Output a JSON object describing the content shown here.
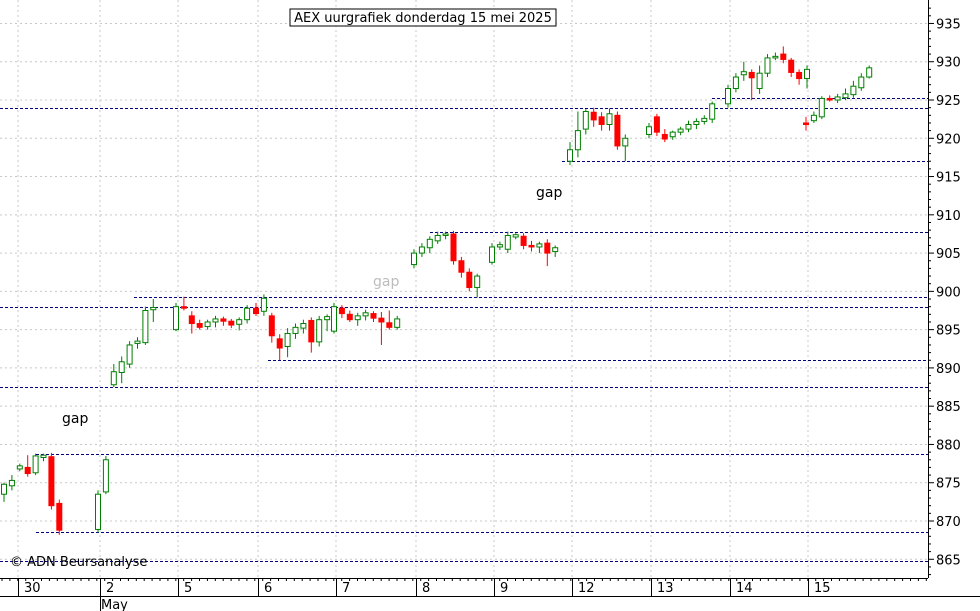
{
  "chart_data": {
    "type": "candlestick",
    "title": "AEX uurgrafiek donderdag 15 mei 2025",
    "copyright": "© ADN Beursanalyse",
    "ylim": [
      862,
      938
    ],
    "y_ticks": [
      865,
      870,
      875,
      880,
      885,
      890,
      895,
      900,
      905,
      910,
      915,
      920,
      925,
      930,
      935
    ],
    "x_day_labels": [
      "30",
      "2",
      "5",
      "6",
      "7",
      "8",
      "9",
      "12",
      "13",
      "14",
      "15"
    ],
    "month_label": "May",
    "grid": true,
    "colors": {
      "up": "#008000",
      "down": "#ff0000",
      "level_line": "#000080"
    },
    "annotations": [
      {
        "text": "gap",
        "style": "black",
        "near_value": 883
      },
      {
        "text": "gap",
        "style": "grey",
        "near_value": 901
      },
      {
        "text": "gap",
        "style": "black",
        "near_value": 913
      }
    ],
    "horizontal_levels": [
      {
        "value": 924,
        "segment": "full"
      },
      {
        "value": 898,
        "segment": "full"
      },
      {
        "value": 887.5,
        "segment": "full"
      },
      {
        "value": 878.8,
        "segment": "from-30-apr"
      },
      {
        "value": 868.5,
        "segment": "from-30-apr"
      },
      {
        "value": 864.8,
        "segment": "full"
      },
      {
        "value": 925.3,
        "segment": "from-14-may"
      },
      {
        "value": 917,
        "segment": "from-12-may"
      },
      {
        "value": 907.8,
        "segment": "from-8-may"
      },
      {
        "value": 899.3,
        "segment": "from-2-may"
      },
      {
        "value": 891,
        "segment": "from-6-may"
      }
    ],
    "days": [
      {
        "label": "30",
        "candles": [
          {
            "o": 873.5,
            "h": 875.0,
            "l": 872.5,
            "c": 874.8
          },
          {
            "o": 874.6,
            "h": 876.0,
            "l": 874.0,
            "c": 875.3
          },
          {
            "o": 876.8,
            "h": 877.5,
            "l": 876.5,
            "c": 877.2
          },
          {
            "o": 877.0,
            "h": 878.6,
            "l": 875.8,
            "c": 876.2
          },
          {
            "o": 876.3,
            "h": 878.8,
            "l": 876.0,
            "c": 878.5
          },
          {
            "o": 878.3,
            "h": 878.8,
            "l": 877.8,
            "c": 878.6
          },
          {
            "o": 878.4,
            "h": 878.9,
            "l": 871.5,
            "c": 872.0
          },
          {
            "o": 872.3,
            "h": 872.8,
            "l": 868.2,
            "c": 868.8
          }
        ]
      },
      {
        "label": "2",
        "candles": [
          {
            "o": 868.9,
            "h": 874.0,
            "l": 868.5,
            "c": 873.5
          },
          {
            "o": 873.8,
            "h": 878.5,
            "l": 873.5,
            "c": 878.0
          },
          {
            "o": 887.8,
            "h": 890.5,
            "l": 887.5,
            "c": 889.5
          },
          {
            "o": 889.4,
            "h": 891.5,
            "l": 888.0,
            "c": 890.8
          },
          {
            "o": 890.5,
            "h": 893.5,
            "l": 890.0,
            "c": 893.0
          },
          {
            "o": 893.2,
            "h": 894.0,
            "l": 892.5,
            "c": 893.5
          },
          {
            "o": 893.3,
            "h": 898.0,
            "l": 893.0,
            "c": 897.5
          },
          {
            "o": 897.6,
            "h": 899.0,
            "l": 896.0,
            "c": 897.9
          }
        ]
      },
      {
        "label": "5",
        "candles": [
          {
            "o": 895.0,
            "h": 898.5,
            "l": 894.8,
            "c": 898.0
          },
          {
            "o": 898.0,
            "h": 899.3,
            "l": 897.5,
            "c": 897.8
          },
          {
            "o": 896.8,
            "h": 897.4,
            "l": 894.5,
            "c": 895.8
          },
          {
            "o": 895.8,
            "h": 896.3,
            "l": 895.0,
            "c": 895.3
          },
          {
            "o": 895.4,
            "h": 896.3,
            "l": 895.0,
            "c": 896.0
          },
          {
            "o": 896.0,
            "h": 896.8,
            "l": 895.3,
            "c": 896.4
          },
          {
            "o": 896.4,
            "h": 896.7,
            "l": 895.5,
            "c": 896.1
          },
          {
            "o": 896.1,
            "h": 896.4,
            "l": 895.2,
            "c": 895.6
          },
          {
            "o": 895.7,
            "h": 896.6,
            "l": 894.9,
            "c": 896.3
          },
          {
            "o": 896.3,
            "h": 898.2,
            "l": 895.8,
            "c": 897.8
          }
        ]
      },
      {
        "label": "6",
        "candles": [
          {
            "o": 897.8,
            "h": 898.5,
            "l": 896.8,
            "c": 897.1
          },
          {
            "o": 897.4,
            "h": 899.6,
            "l": 896.8,
            "c": 899.1
          },
          {
            "o": 896.8,
            "h": 897.2,
            "l": 893.3,
            "c": 894.2
          },
          {
            "o": 893.8,
            "h": 894.4,
            "l": 891.0,
            "c": 892.6
          },
          {
            "o": 892.8,
            "h": 895.2,
            "l": 891.4,
            "c": 894.5
          },
          {
            "o": 894.5,
            "h": 895.8,
            "l": 893.8,
            "c": 895.3
          },
          {
            "o": 895.2,
            "h": 896.3,
            "l": 894.5,
            "c": 895.8
          },
          {
            "o": 896.2,
            "h": 896.6,
            "l": 892.0,
            "c": 893.4
          },
          {
            "o": 893.4,
            "h": 896.8,
            "l": 892.8,
            "c": 896.3
          },
          {
            "o": 896.3,
            "h": 897.0,
            "l": 894.8,
            "c": 896.7
          }
        ]
      },
      {
        "label": "7",
        "candles": [
          {
            "o": 894.8,
            "h": 898.5,
            "l": 894.5,
            "c": 898.0
          },
          {
            "o": 897.8,
            "h": 898.2,
            "l": 896.5,
            "c": 897.1
          },
          {
            "o": 897.0,
            "h": 897.5,
            "l": 896.0,
            "c": 896.3
          },
          {
            "o": 896.3,
            "h": 897.2,
            "l": 895.5,
            "c": 896.8
          },
          {
            "o": 896.8,
            "h": 897.6,
            "l": 896.2,
            "c": 897.2
          },
          {
            "o": 897.1,
            "h": 897.4,
            "l": 896.0,
            "c": 896.5
          },
          {
            "o": 896.5,
            "h": 897.3,
            "l": 893.0,
            "c": 896.0
          },
          {
            "o": 895.9,
            "h": 897.5,
            "l": 895.0,
            "c": 895.3
          },
          {
            "o": 895.3,
            "h": 896.8,
            "l": 895.0,
            "c": 896.4
          }
        ]
      },
      {
        "label": "8",
        "candles": [
          {
            "o": 903.5,
            "h": 905.5,
            "l": 903.0,
            "c": 905.0
          },
          {
            "o": 905.0,
            "h": 906.3,
            "l": 904.5,
            "c": 905.8
          },
          {
            "o": 905.7,
            "h": 907.2,
            "l": 905.0,
            "c": 906.8
          },
          {
            "o": 906.6,
            "h": 907.8,
            "l": 906.2,
            "c": 907.3
          },
          {
            "o": 907.3,
            "h": 907.8,
            "l": 906.8,
            "c": 907.5
          },
          {
            "o": 907.5,
            "h": 907.9,
            "l": 903.5,
            "c": 904.0
          },
          {
            "o": 904.0,
            "h": 904.5,
            "l": 901.8,
            "c": 902.5
          },
          {
            "o": 902.5,
            "h": 903.0,
            "l": 900.0,
            "c": 900.5
          },
          {
            "o": 900.5,
            "h": 902.3,
            "l": 899.2,
            "c": 902.0
          }
        ]
      },
      {
        "label": "9",
        "candles": [
          {
            "o": 903.8,
            "h": 906.3,
            "l": 903.5,
            "c": 905.8
          },
          {
            "o": 905.8,
            "h": 906.5,
            "l": 905.4,
            "c": 906.1
          },
          {
            "o": 905.5,
            "h": 907.8,
            "l": 905.0,
            "c": 907.3
          },
          {
            "o": 907.1,
            "h": 907.6,
            "l": 906.8,
            "c": 907.4
          },
          {
            "o": 907.2,
            "h": 907.6,
            "l": 905.5,
            "c": 906.0
          },
          {
            "o": 906.0,
            "h": 906.6,
            "l": 905.2,
            "c": 905.8
          },
          {
            "o": 905.8,
            "h": 906.5,
            "l": 905.0,
            "c": 906.2
          },
          {
            "o": 906.3,
            "h": 906.8,
            "l": 903.3,
            "c": 905.0
          },
          {
            "o": 905.2,
            "h": 906.0,
            "l": 904.5,
            "c": 905.7
          }
        ]
      },
      {
        "label": "12",
        "candles": [
          {
            "o": 917.0,
            "h": 919.5,
            "l": 916.5,
            "c": 918.5
          },
          {
            "o": 918.5,
            "h": 923.5,
            "l": 917.5,
            "c": 921.0
          },
          {
            "o": 921.2,
            "h": 923.8,
            "l": 920.5,
            "c": 923.5
          },
          {
            "o": 923.4,
            "h": 924.0,
            "l": 921.5,
            "c": 922.4
          },
          {
            "o": 922.8,
            "h": 923.4,
            "l": 921.0,
            "c": 921.8
          },
          {
            "o": 921.8,
            "h": 923.9,
            "l": 921.0,
            "c": 923.2
          },
          {
            "o": 923.0,
            "h": 923.5,
            "l": 918.5,
            "c": 919.0
          },
          {
            "o": 919.0,
            "h": 920.5,
            "l": 917.0,
            "c": 920.0
          }
        ]
      },
      {
        "label": "13",
        "candles": [
          {
            "o": 920.5,
            "h": 922.0,
            "l": 920.0,
            "c": 921.5
          },
          {
            "o": 922.8,
            "h": 923.2,
            "l": 920.3,
            "c": 920.8
          },
          {
            "o": 920.5,
            "h": 921.2,
            "l": 919.5,
            "c": 919.9
          },
          {
            "o": 920.2,
            "h": 921.0,
            "l": 919.8,
            "c": 920.8
          },
          {
            "o": 920.8,
            "h": 921.5,
            "l": 920.4,
            "c": 921.2
          },
          {
            "o": 921.2,
            "h": 922.3,
            "l": 920.8,
            "c": 921.8
          },
          {
            "o": 921.8,
            "h": 922.6,
            "l": 921.2,
            "c": 922.2
          },
          {
            "o": 922.2,
            "h": 923.0,
            "l": 921.8,
            "c": 922.6
          },
          {
            "o": 922.5,
            "h": 924.8,
            "l": 922.0,
            "c": 924.5
          }
        ]
      },
      {
        "label": "14",
        "candles": [
          {
            "o": 924.5,
            "h": 927.0,
            "l": 924.0,
            "c": 926.5
          },
          {
            "o": 926.5,
            "h": 928.5,
            "l": 926.0,
            "c": 928.0
          },
          {
            "o": 928.3,
            "h": 930.0,
            "l": 927.5,
            "c": 928.7
          },
          {
            "o": 928.6,
            "h": 929.0,
            "l": 925.0,
            "c": 927.9
          },
          {
            "o": 926.5,
            "h": 929.5,
            "l": 925.8,
            "c": 928.5
          },
          {
            "o": 928.5,
            "h": 931.0,
            "l": 928.0,
            "c": 930.5
          },
          {
            "o": 930.5,
            "h": 931.2,
            "l": 930.2,
            "c": 930.7
          },
          {
            "o": 931.0,
            "h": 932.0,
            "l": 929.8,
            "c": 930.3
          },
          {
            "o": 930.2,
            "h": 930.5,
            "l": 928.0,
            "c": 928.6
          },
          {
            "o": 928.6,
            "h": 929.0,
            "l": 927.0,
            "c": 927.8
          },
          {
            "o": 927.8,
            "h": 929.5,
            "l": 926.5,
            "c": 929.0
          }
        ]
      },
      {
        "label": "15",
        "candles": [
          {
            "o": 922.0,
            "h": 922.8,
            "l": 921.0,
            "c": 921.8
          },
          {
            "o": 922.3,
            "h": 923.5,
            "l": 922.0,
            "c": 923.0
          },
          {
            "o": 922.8,
            "h": 925.5,
            "l": 922.5,
            "c": 925.2
          },
          {
            "o": 925.2,
            "h": 925.6,
            "l": 924.8,
            "c": 925.0
          },
          {
            "o": 925.0,
            "h": 925.8,
            "l": 924.6,
            "c": 925.4
          },
          {
            "o": 925.3,
            "h": 926.5,
            "l": 925.0,
            "c": 925.8
          },
          {
            "o": 925.7,
            "h": 927.5,
            "l": 925.3,
            "c": 926.8
          },
          {
            "o": 926.6,
            "h": 928.5,
            "l": 926.2,
            "c": 928.0
          },
          {
            "o": 928.0,
            "h": 929.5,
            "l": 927.8,
            "c": 929.2
          }
        ]
      }
    ]
  }
}
